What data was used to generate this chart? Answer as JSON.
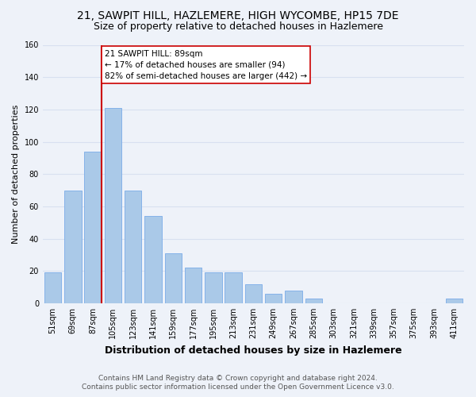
{
  "title_line1": "21, SAWPIT HILL, HAZLEMERE, HIGH WYCOMBE, HP15 7DE",
  "title_line2": "Size of property relative to detached houses in Hazlemere",
  "xlabel": "Distribution of detached houses by size in Hazlemere",
  "ylabel": "Number of detached properties",
  "bar_labels": [
    "51sqm",
    "69sqm",
    "87sqm",
    "105sqm",
    "123sqm",
    "141sqm",
    "159sqm",
    "177sqm",
    "195sqm",
    "213sqm",
    "231sqm",
    "249sqm",
    "267sqm",
    "285sqm",
    "303sqm",
    "321sqm",
    "339sqm",
    "357sqm",
    "375sqm",
    "393sqm",
    "411sqm"
  ],
  "bar_values": [
    19,
    70,
    94,
    121,
    70,
    54,
    31,
    22,
    19,
    19,
    12,
    6,
    8,
    3,
    0,
    0,
    0,
    0,
    0,
    0,
    3
  ],
  "bar_color": "#aac9e8",
  "bar_edge_color": "#7aabe8",
  "highlight_bar_index": 2,
  "highlight_color": "#cc0000",
  "annotation_title": "21 SAWPIT HILL: 89sqm",
  "annotation_line1": "← 17% of detached houses are smaller (94)",
  "annotation_line2": "82% of semi-detached houses are larger (442) →",
  "annotation_box_color": "#ffffff",
  "annotation_box_edge": "#cc0000",
  "ylim": [
    0,
    160
  ],
  "yticks": [
    0,
    20,
    40,
    60,
    80,
    100,
    120,
    140,
    160
  ],
  "footer_line1": "Contains HM Land Registry data © Crown copyright and database right 2024.",
  "footer_line2": "Contains public sector information licensed under the Open Government Licence v3.0.",
  "background_color": "#eef2f9",
  "grid_color": "#d8e0f0",
  "title_fontsize": 10,
  "subtitle_fontsize": 9,
  "xlabel_fontsize": 9,
  "ylabel_fontsize": 8,
  "tick_fontsize": 7,
  "annotation_fontsize": 7.5,
  "footer_fontsize": 6.5
}
